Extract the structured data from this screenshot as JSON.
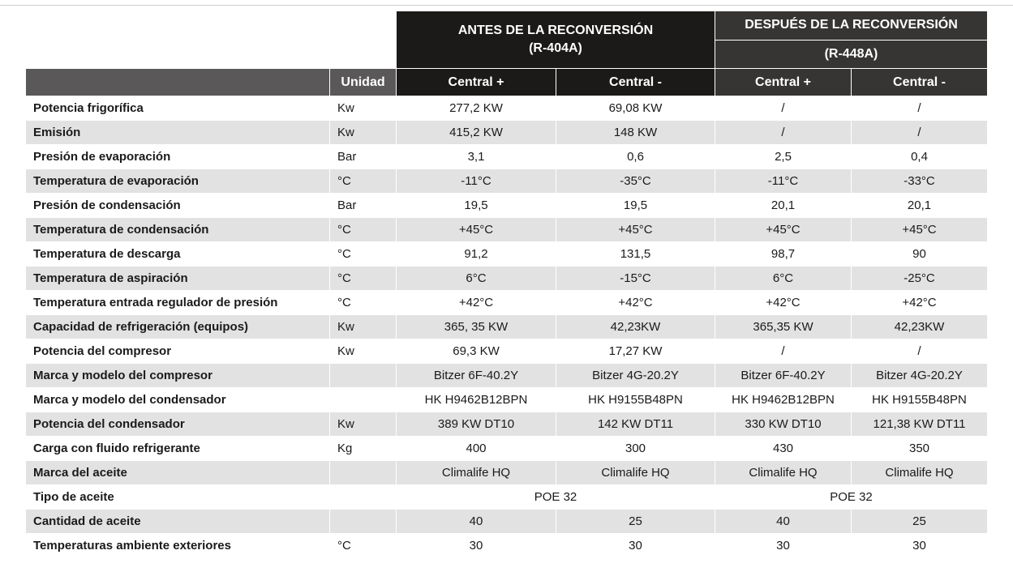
{
  "header": {
    "before_title": "ANTES DE LA RECONVERSIÓN",
    "before_refrigerant": "(R-404A)",
    "after_title": "DESPUÉS DE LA RECONVERSIÓN",
    "after_refrigerant": "(R-448A)",
    "unit_label": "Unidad",
    "columns": [
      "Central +",
      "Central -",
      "Central +",
      "Central -"
    ]
  },
  "rows": [
    {
      "label": "Potencia frigorífica",
      "unit": "Kw",
      "values": [
        "277,2 KW",
        "69,08 KW",
        "/",
        "/"
      ]
    },
    {
      "label": "Emisión",
      "unit": "Kw",
      "values": [
        "415,2 KW",
        "148 KW",
        "/",
        "/"
      ]
    },
    {
      "label": "Presión de evaporación",
      "unit": "Bar",
      "values": [
        "3,1",
        "0,6",
        "2,5",
        "0,4"
      ]
    },
    {
      "label": "Temperatura de evaporación",
      "unit": "°C",
      "values": [
        "-11°C",
        "-35°C",
        "-11°C",
        "-33°C"
      ]
    },
    {
      "label": "Presión de condensación",
      "unit": "Bar",
      "values": [
        "19,5",
        "19,5",
        "20,1",
        "20,1"
      ]
    },
    {
      "label": "Temperatura de condensación",
      "unit": "°C",
      "values": [
        "+45°C",
        "+45°C",
        "+45°C",
        "+45°C"
      ]
    },
    {
      "label": "Temperatura de descarga",
      "unit": "°C",
      "values": [
        "91,2",
        "131,5",
        "98,7",
        "90"
      ]
    },
    {
      "label": "Temperatura de aspiración",
      "unit": "°C",
      "values": [
        "6°C",
        "-15°C",
        "6°C",
        "-25°C"
      ]
    },
    {
      "label": "Temperatura entrada regulador de presión",
      "unit": "°C",
      "values": [
        "+42°C",
        "+42°C",
        "+42°C",
        "+42°C"
      ]
    },
    {
      "label": "Capacidad de refrigeración (equipos)",
      "unit": "Kw",
      "values": [
        "365, 35 KW",
        "42,23KW",
        "365,35 KW",
        "42,23KW"
      ]
    },
    {
      "label": "Potencia del compresor",
      "unit": "Kw",
      "values": [
        "69,3 KW",
        "17,27 KW",
        "/",
        "/"
      ]
    },
    {
      "label": "Marca y modelo del compresor",
      "unit": "",
      "values": [
        "Bitzer 6F-40.2Y",
        "Bitzer 4G-20.2Y",
        "Bitzer 6F-40.2Y",
        "Bitzer 4G-20.2Y"
      ]
    },
    {
      "label": "Marca y modelo del condensador",
      "unit": "",
      "values": [
        "HK H9462B12BPN",
        "HK H9155B48PN",
        "HK H9462B12BPN",
        "HK H9155B48PN"
      ]
    },
    {
      "label": "Potencia del condensador",
      "unit": "Kw",
      "values": [
        "389 KW DT10",
        "142 KW DT11",
        "330 KW DT10",
        "121,38 KW DT11"
      ]
    },
    {
      "label": "Carga con fluido refrigerante",
      "unit": "Kg",
      "values": [
        "400",
        "300",
        "430",
        "350"
      ]
    },
    {
      "label": "Marca del aceite",
      "unit": "",
      "values": [
        "Climalife HQ",
        "Climalife HQ",
        "Climalife HQ",
        "Climalife HQ"
      ]
    },
    {
      "label": "Tipo de aceite",
      "unit": "",
      "merged": true,
      "values": [
        "POE 32",
        "POE 32"
      ]
    },
    {
      "label": "Cantidad de aceite",
      "unit": "",
      "values": [
        "40",
        "25",
        "40",
        "25"
      ]
    },
    {
      "label": "Temperaturas ambiente exteriores",
      "unit": "°C",
      "values": [
        "30",
        "30",
        "30",
        "30"
      ]
    }
  ]
}
